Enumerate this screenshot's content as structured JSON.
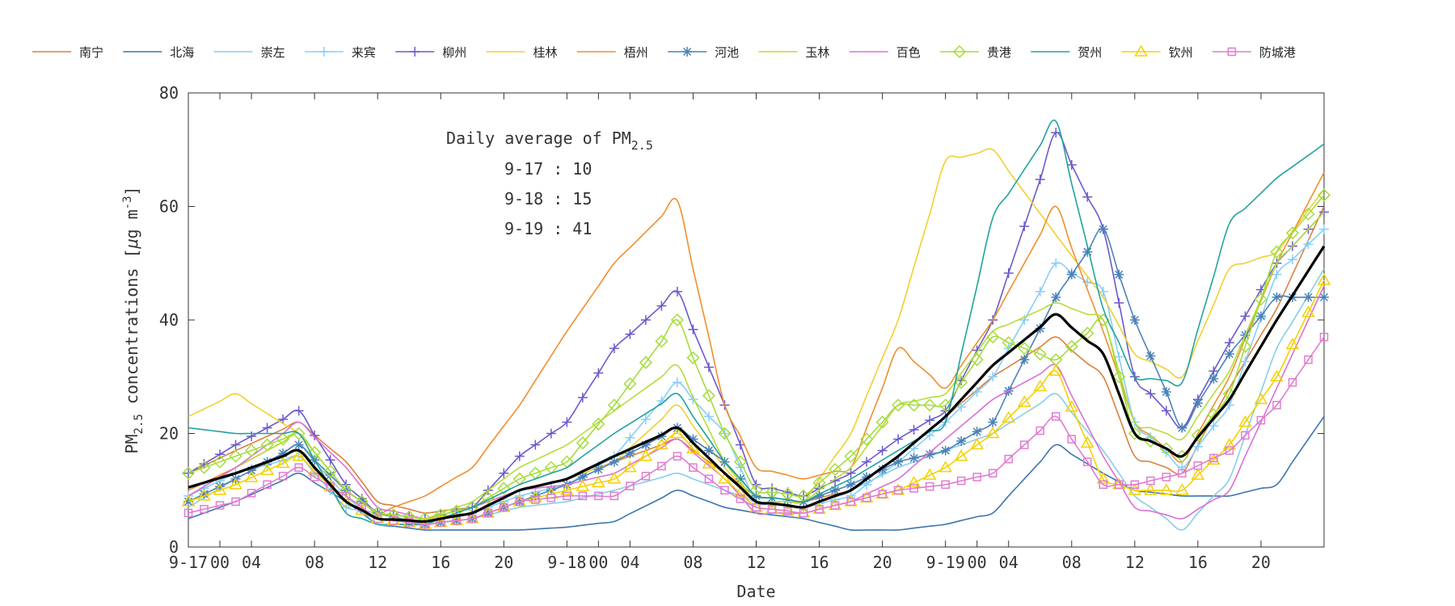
{
  "chart_data": {
    "type": "line",
    "xlabel": "Date",
    "ylabel_main": "PM",
    "ylabel_sub": "2.5",
    "ylabel_rest": " concentrations [",
    "ylabel_mu": "μ",
    "ylabel_unit": "g m",
    "ylabel_sup": "-3",
    "ylabel_close": "]",
    "ylim": [
      0,
      80
    ],
    "xlim": [
      0,
      72
    ],
    "yticks": [
      0,
      20,
      40,
      60,
      80
    ],
    "xticks": [
      {
        "x": 0,
        "label": "9-17"
      },
      {
        "x": 2,
        "label": "00"
      },
      {
        "x": 4,
        "label": "04"
      },
      {
        "x": 8,
        "label": "08"
      },
      {
        "x": 12,
        "label": "12"
      },
      {
        "x": 16,
        "label": "16"
      },
      {
        "x": 20,
        "label": "20"
      },
      {
        "x": 24,
        "label": "9-18"
      },
      {
        "x": 26,
        "label": "00"
      },
      {
        "x": 28,
        "label": "04"
      },
      {
        "x": 32,
        "label": "08"
      },
      {
        "x": 36,
        "label": "12"
      },
      {
        "x": 40,
        "label": "16"
      },
      {
        "x": 44,
        "label": "20"
      },
      {
        "x": 48,
        "label": "9-19"
      },
      {
        "x": 50,
        "label": "00"
      },
      {
        "x": 52,
        "label": "04"
      },
      {
        "x": 56,
        "label": "08"
      },
      {
        "x": 60,
        "label": "12"
      },
      {
        "x": 64,
        "label": "16"
      },
      {
        "x": 68,
        "label": "20"
      }
    ],
    "annotation": {
      "title_main": "Daily average of PM",
      "title_sub": "2.5",
      "lines": [
        "9-17 : 10",
        "9-18 : 15",
        "9-19 : 41"
      ]
    },
    "legend_position": "top",
    "grid": false,
    "knots": [
      0,
      3,
      7,
      10,
      12,
      15,
      18,
      21,
      24,
      27,
      31,
      34,
      36,
      39,
      42,
      45,
      48,
      51,
      55,
      58,
      60,
      63,
      66,
      69,
      72
    ],
    "series": [
      {
        "name": "南宁",
        "color": "#D9813F",
        "marker": "none",
        "knots": [
          13,
          17,
          22,
          15,
          8,
          6,
          7,
          10,
          12,
          15,
          19,
          13,
          9,
          8,
          10,
          16,
          23,
          30,
          37,
          30,
          16,
          13,
          28,
          42,
          60
        ]
      },
      {
        "name": "北海",
        "color": "#3B75AF",
        "marker": "none",
        "knots": [
          5,
          8,
          13,
          8,
          4,
          3,
          3,
          3,
          3.5,
          4.5,
          10,
          7,
          6,
          5,
          3,
          3,
          4,
          6,
          18,
          13,
          10,
          9,
          9,
          11,
          23
        ]
      },
      {
        "name": "崇左",
        "color": "#87CEEB",
        "marker": "none",
        "knots": [
          7,
          12,
          18,
          9,
          4,
          4,
          5,
          7,
          8,
          10,
          13,
          10,
          8,
          7,
          10,
          14,
          17,
          20,
          27,
          17,
          9,
          3,
          12,
          35,
          49
        ]
      },
      {
        "name": "来宾",
        "color": "#87CEFA",
        "marker": "plus",
        "knots": [
          9,
          13,
          16,
          7,
          6,
          5,
          6,
          9,
          11,
          16,
          29,
          20,
          8,
          7,
          9,
          15,
          22,
          30,
          50,
          45,
          22,
          14,
          25,
          48,
          56
        ]
      },
      {
        "name": "柳州",
        "color": "#6A5ACD",
        "marker": "plus",
        "knots": [
          13,
          18,
          24,
          11,
          6,
          5,
          7,
          16,
          22,
          35,
          45,
          25,
          11,
          9,
          13,
          19,
          24,
          40,
          73,
          56,
          30,
          21,
          36,
          50,
          59
        ]
      },
      {
        "name": "桂林",
        "color": "#F2CF2E",
        "marker": "none",
        "knots": [
          23,
          27,
          20,
          10,
          6,
          5,
          6,
          10,
          12,
          15,
          25,
          14,
          8,
          8,
          20,
          40,
          68,
          70,
          55,
          44,
          34,
          30,
          49,
          52,
          63
        ]
      },
      {
        "name": "梧州",
        "color": "#F28E2B",
        "marker": "none",
        "knots": [
          10,
          14,
          20,
          10,
          6,
          9,
          14,
          25,
          38,
          50,
          61,
          25,
          14,
          12,
          14,
          35,
          28,
          40,
          60,
          38,
          22,
          15,
          30,
          50,
          66
        ]
      },
      {
        "name": "河池",
        "color": "#4C82B8",
        "marker": "star",
        "knots": [
          8,
          12,
          18,
          10,
          6,
          4,
          5,
          8,
          11,
          15,
          21,
          15,
          9,
          8,
          11,
          15,
          17,
          22,
          44,
          56,
          40,
          21,
          34,
          44,
          44
        ]
      },
      {
        "name": "玉林",
        "color": "#B3DE3A",
        "marker": "none",
        "knots": [
          9,
          14,
          20,
          10,
          6,
          5,
          8,
          14,
          18,
          24,
          32,
          15,
          8,
          8,
          14,
          25,
          27,
          38,
          43,
          40,
          22,
          19,
          31,
          50,
          59
        ]
      },
      {
        "name": "百色",
        "color": "#DA70D6",
        "marker": "none",
        "knots": [
          9,
          14,
          22,
          14,
          7,
          5,
          7,
          10,
          11,
          13,
          19,
          12,
          6,
          6,
          8,
          12,
          19,
          26,
          32,
          16,
          7,
          5,
          10,
          28,
          46
        ]
      },
      {
        "name": "贵港",
        "color": "#A5DC3C",
        "marker": "diamond",
        "knots": [
          13,
          16,
          20,
          10,
          6,
          5,
          7,
          12,
          15,
          25,
          40,
          20,
          10,
          9,
          16,
          25,
          25,
          37,
          33,
          40,
          20,
          16,
          27,
          52,
          62
        ]
      },
      {
        "name": "贺州",
        "color": "#20A39E",
        "marker": "none",
        "knots": [
          21,
          20,
          20,
          6,
          4,
          4,
          7,
          11,
          14,
          20,
          27,
          15,
          9,
          8,
          12,
          17,
          22,
          58,
          75,
          42,
          30,
          29,
          57,
          65,
          71
        ]
      },
      {
        "name": "钦州",
        "color": "#F5D000",
        "marker": "triangle",
        "knots": [
          8,
          11,
          16,
          8,
          5,
          4,
          5,
          8,
          10,
          12,
          20,
          12,
          7,
          6,
          8,
          10,
          14,
          20,
          31,
          12,
          10,
          10,
          18,
          30,
          47
        ]
      },
      {
        "name": "防城港",
        "color": "#E07CD0",
        "marker": "square",
        "knots": [
          6,
          8,
          14,
          9,
          5,
          4,
          5,
          8,
          9,
          9,
          16,
          10,
          7,
          6,
          8,
          10,
          11,
          13,
          23,
          11,
          11,
          13,
          17,
          25,
          37
        ]
      },
      {
        "name": "",
        "color": "#000000",
        "marker": "none",
        "lineWidth": 3.2,
        "knots": [
          10.5,
          13,
          17,
          8,
          5,
          4.5,
          6,
          10,
          12,
          16,
          21,
          13,
          8,
          7,
          10,
          16,
          23,
          32,
          41,
          34,
          20,
          16,
          26,
          40,
          53
        ]
      }
    ]
  }
}
